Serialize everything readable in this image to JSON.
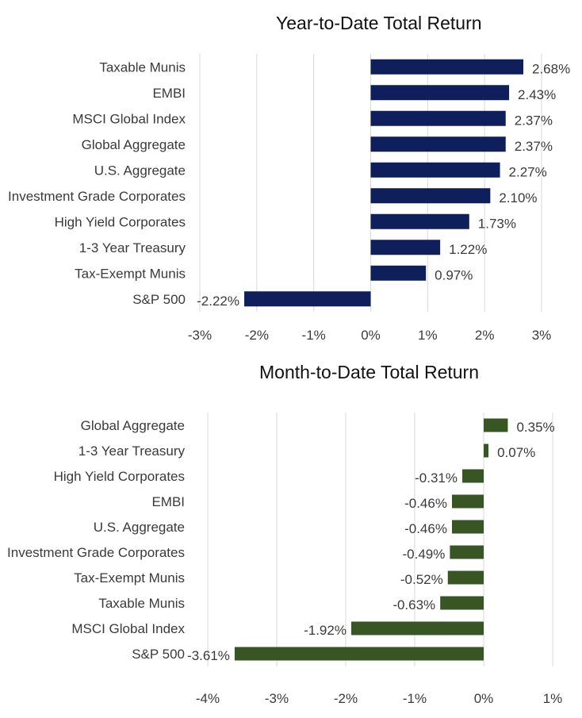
{
  "chart_data": [
    {
      "type": "bar",
      "orientation": "horizontal",
      "title": "Year-to-Date Total Return",
      "categories": [
        "Taxable Munis",
        "EMBI",
        "MSCI Global Index",
        "Global Aggregate",
        "U.S. Aggregate",
        "Investment Grade Corporates",
        "High Yield Corporates",
        "1-3 Year Treasury",
        "Tax-Exempt Munis",
        "S&P 500"
      ],
      "values": [
        2.68,
        2.43,
        2.37,
        2.37,
        2.27,
        2.1,
        1.73,
        1.22,
        0.97,
        -2.22
      ],
      "value_labels": [
        "2.68%",
        "2.43%",
        "2.37%",
        "2.37%",
        "2.27%",
        "2.10%",
        "1.73%",
        "1.22%",
        "0.97%",
        "-2.22%"
      ],
      "xlim": [
        -3,
        3
      ],
      "ticks": [
        -3,
        -2,
        -1,
        0,
        1,
        2,
        3
      ],
      "tick_labels": [
        "-3%",
        "-2%",
        "-1%",
        "0%",
        "1%",
        "2%",
        "3%"
      ],
      "color": "#0e1f5b",
      "grid": true
    },
    {
      "type": "bar",
      "orientation": "horizontal",
      "title": "Month-to-Date Total Return",
      "categories": [
        "Global Aggregate",
        "1-3 Year Treasury",
        "High Yield Corporates",
        "EMBI",
        "U.S. Aggregate",
        "Investment Grade Corporates",
        "Tax-Exempt Munis",
        "Taxable Munis",
        "MSCI Global Index",
        "S&P 500"
      ],
      "values": [
        0.35,
        0.07,
        -0.31,
        -0.46,
        -0.46,
        -0.49,
        -0.52,
        -0.63,
        -1.92,
        -3.61
      ],
      "value_labels": [
        "0.35%",
        "0.07%",
        "-0.31%",
        "-0.46%",
        "-0.46%",
        "-0.49%",
        "-0.52%",
        "-0.63%",
        "-1.92%",
        "-3.61%"
      ],
      "xlim": [
        -4,
        1
      ],
      "ticks": [
        -4,
        -3,
        -2,
        -1,
        0,
        1
      ],
      "tick_labels": [
        "-4%",
        "-3%",
        "-2%",
        "-1%",
        "0%",
        "1%"
      ],
      "color": "#375623",
      "grid": true
    }
  ]
}
